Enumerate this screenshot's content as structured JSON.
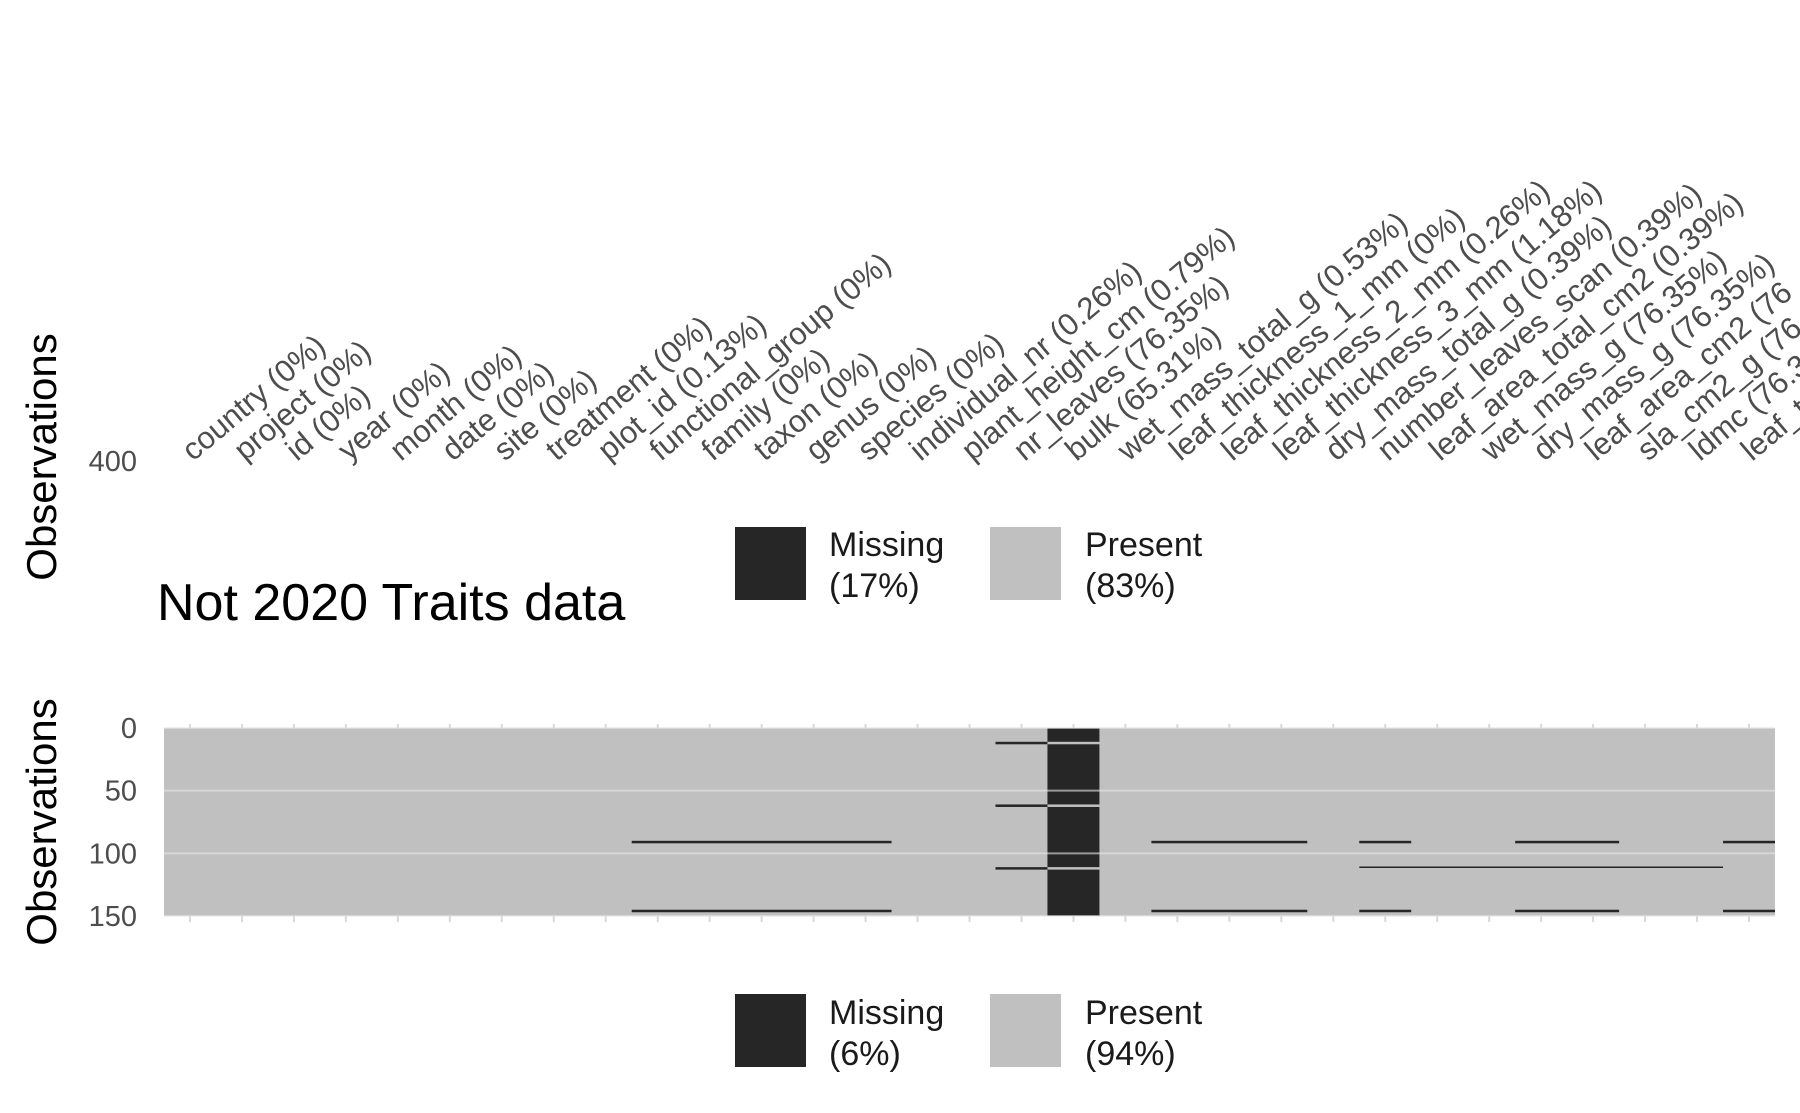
{
  "chart_data": [
    {
      "type": "heatmap",
      "title": "",
      "ylabel": "Observations",
      "yticks": [
        "400"
      ],
      "columns": [
        "country (0%)",
        "project (0%)",
        "id (0%)",
        "year (0%)",
        "month (0%)",
        "date (0%)",
        "site (0%)",
        "treatment (0%)",
        "plot_id (0.13%)",
        "functional_group (0%)",
        "family (0%)",
        "taxon (0%)",
        "genus (0%)",
        "species (0%)",
        "individual_nr (0.26%)",
        "plant_height_cm (0.79%)",
        "nr_leaves (76.35%)",
        "bulk (65.31%)",
        "wet_mass_total_g (0.53%)",
        "leaf_thickness_1_mm (0%)",
        "leaf_thickness_2_mm (0.26%)",
        "leaf_thickness_3_mm (1.18%)",
        "dry_mass_total_g (0.39%)",
        "number_leaves_scan (0.39%)",
        "leaf_area_total_cm2 (0.39%)",
        "wet_mass_g (76.35%)",
        "dry_mass_g (76.35%)",
        "leaf_area_cm2 (76",
        "sla_cm2_g (76.3",
        "ldmc (76.3",
        "leaf_t"
      ],
      "legend": [
        {
          "label": "Missing",
          "pct": "(17%)",
          "color": "#262626"
        },
        {
          "label": "Present",
          "pct": "(83%)",
          "color": "#c0c0c0"
        }
      ]
    },
    {
      "type": "heatmap",
      "title": "Not 2020 Traits data",
      "ylabel": "Observations",
      "yticks": [
        0,
        50,
        100,
        150
      ],
      "ylim": [
        0,
        150
      ],
      "n_columns": 31,
      "missing": [
        {
          "col_from": 9,
          "col_to": 13,
          "rows": [
            [
              90,
              92
            ],
            [
              145,
              147
            ]
          ]
        },
        {
          "col_from": 16,
          "col_to": 16,
          "rows": [
            [
              11,
              13
            ],
            [
              61,
              63
            ],
            [
              111,
              113
            ]
          ]
        },
        {
          "col_from": 17,
          "col_to": 17,
          "rows": [
            [
              0,
              11
            ],
            [
              13,
              61
            ],
            [
              63,
              111
            ],
            [
              113,
              150
            ]
          ]
        },
        {
          "col_from": 19,
          "col_to": 21,
          "rows": [
            [
              90,
              92
            ],
            [
              145,
              147
            ]
          ]
        },
        {
          "col_from": 23,
          "col_to": 23,
          "rows": [
            [
              90,
              92
            ],
            [
              145,
              147
            ]
          ]
        },
        {
          "col_from": 26,
          "col_to": 27,
          "rows": [
            [
              90,
              92
            ],
            [
              145,
              147
            ]
          ]
        },
        {
          "col_from": 30,
          "col_to": 30,
          "rows": [
            [
              90,
              92
            ],
            [
              145,
              147
            ]
          ]
        },
        {
          "col_from": 23,
          "col_to": 29,
          "rows": [
            [
              110.5,
              111.5
            ]
          ]
        }
      ],
      "legend": [
        {
          "label": "Missing",
          "pct": "(6%)",
          "color": "#262626"
        },
        {
          "label": "Present",
          "pct": "(94%)",
          "color": "#c0c0c0"
        }
      ]
    }
  ]
}
